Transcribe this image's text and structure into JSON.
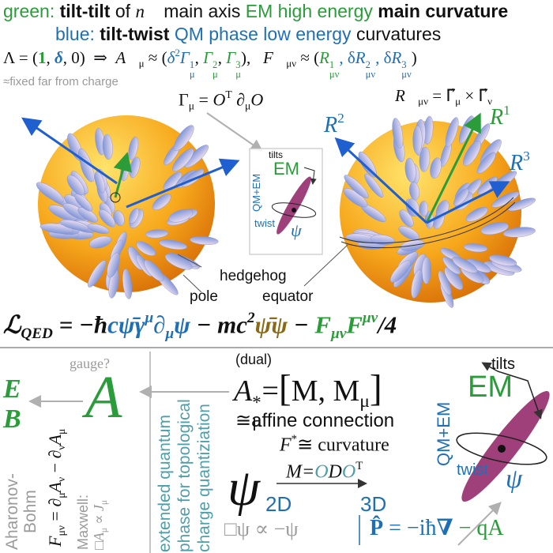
{
  "top": {
    "l1": [
      "green:",
      "tilt-tilt",
      "of",
      "n⃗",
      "main axis",
      "EM",
      "high energy",
      "main curvature"
    ],
    "l2": [
      "blue:",
      "tilt-twist",
      "QM phase low energy",
      "curvatures"
    ],
    "lambda": [
      "Λ = (",
      "1",
      ", ",
      "δ",
      ", 0)  ⇒  ",
      "A⃗",
      "μ",
      " ≈ (",
      "δ",
      "2",
      "Γ",
      "1",
      "μ",
      ", ",
      "Γ",
      "2",
      "μ",
      ", ",
      "Γ",
      "3",
      "μ",
      "),   ",
      "F⃗",
      "μν",
      " ≈ (",
      "R",
      "1",
      "μν",
      ", δ",
      "R",
      "2",
      "μν",
      ", δ",
      "R",
      "3",
      "μν",
      ")"
    ],
    "fixed": "≈fixed far from charge",
    "gamma": [
      "Γ",
      "μ",
      " = ",
      "O",
      "T",
      " ∂",
      "μ",
      "O"
    ],
    "rvec": [
      "R⃗",
      "μν",
      " = ",
      "Γ⃗",
      "μ",
      " × ",
      "Γ⃗",
      "ν"
    ]
  },
  "spheres": {
    "r2": [
      "R",
      "2"
    ],
    "r1": [
      "R",
      "1"
    ],
    "r3": [
      "R",
      "3"
    ],
    "hedgehog": "hedgehog",
    "pole": "pole",
    "equator": "equator"
  },
  "inset_small": {
    "tilts": "tilts",
    "em": "EM",
    "qmem": "QM+EM",
    "twist": "twist",
    "psi": "ψ"
  },
  "lagrangian": [
    "ℒ",
    "QED",
    " = −ħ",
    "c",
    "ψ̄γ",
    "μ",
    "∂",
    "μ",
    "ψ",
    " − ",
    "mc",
    "2",
    "ψ̄ψ",
    " − ",
    "F",
    "μν",
    "F",
    "μν",
    "/4"
  ],
  "bottom": {
    "e": "E",
    "b": "B",
    "gauge": "gauge?",
    "a": "A",
    "faraday": [
      "F",
      "μν",
      " = ∂",
      "μ",
      "A",
      "ν",
      " − ∂",
      "ν",
      "A",
      "μ"
    ],
    "ab": [
      "Aharonov-",
      "Bohm"
    ],
    "maxwell": "Maxwell:",
    "maxwell_eq": [
      "□",
      "A",
      "μ",
      " ∝ ",
      "J",
      "μ"
    ],
    "ext": [
      "extended quantum",
      "phase for topological",
      "charge quantiziation"
    ],
    "dual": "(dual)",
    "astar": [
      "A",
      "*",
      "μ",
      "=",
      "[",
      "M, M",
      "μ",
      "]"
    ],
    "affine": "≅affine connection",
    "fstar": [
      "F",
      "*",
      "≅ curvature"
    ],
    "psi": "ψ",
    "d2": "2D",
    "modo": [
      "M=",
      "O",
      "D",
      "O",
      "T"
    ],
    "d3": "3D",
    "box": "□ψ ∝ −ψ",
    "p": [
      "P̂",
      " = −iħ",
      "∇",
      " − qA"
    ]
  },
  "inset_big": {
    "tilts": "tilts",
    "em": "EM",
    "qmem": "QM+EM",
    "twist": "twist",
    "psi": "ψ"
  }
}
